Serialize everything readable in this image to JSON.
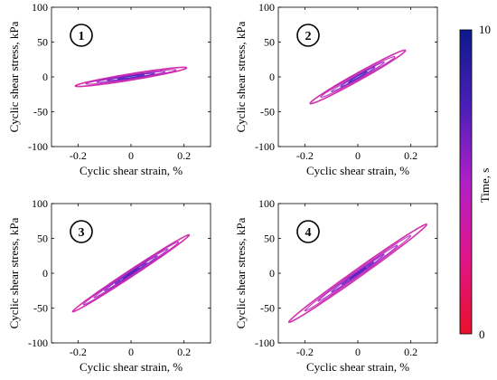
{
  "chart_data": {
    "type": "line",
    "panels": [
      {
        "id": "1",
        "xlabel": "Cyclic shear strain, %",
        "ylabel": "Cyclic shear stress, kPa",
        "xlim": [
          -0.3,
          0.3
        ],
        "ylim": [
          -100,
          100
        ],
        "xticks": [
          "-0.2",
          "0",
          "0.2"
        ],
        "yticks": [
          "100",
          "50",
          "0",
          "-50",
          "-100"
        ],
        "loops": [
          {
            "strain_amp": 0.21,
            "stress_amp": 13,
            "minor_ratio": 0.35
          },
          {
            "strain_amp": 0.17,
            "stress_amp": 10,
            "minor_ratio": 0.33
          },
          {
            "strain_amp": 0.13,
            "stress_amp": 7.5,
            "minor_ratio": 0.3
          },
          {
            "strain_amp": 0.09,
            "stress_amp": 5,
            "minor_ratio": 0.3
          },
          {
            "strain_amp": 0.05,
            "stress_amp": 3,
            "minor_ratio": 0.3
          }
        ]
      },
      {
        "id": "2",
        "xlabel": "Cyclic shear strain, %",
        "ylabel": "Cyclic shear stress, kPa",
        "xlim": [
          -0.3,
          0.3
        ],
        "ylim": [
          -100,
          100
        ],
        "xticks": [
          "-0.2",
          "0",
          "0.2"
        ],
        "yticks": [
          "100",
          "50",
          "0",
          "-50",
          "-100"
        ],
        "loops": [
          {
            "strain_amp": 0.18,
            "stress_amp": 38,
            "minor_ratio": 0.16
          },
          {
            "strain_amp": 0.14,
            "stress_amp": 29,
            "minor_ratio": 0.15
          },
          {
            "strain_amp": 0.1,
            "stress_amp": 21,
            "minor_ratio": 0.14
          },
          {
            "strain_amp": 0.065,
            "stress_amp": 14,
            "minor_ratio": 0.14
          },
          {
            "strain_amp": 0.035,
            "stress_amp": 8,
            "minor_ratio": 0.14
          }
        ]
      },
      {
        "id": "3",
        "xlabel": "Cyclic shear strain, %",
        "ylabel": "Cyclic shear stress, kPa",
        "xlim": [
          -0.3,
          0.3
        ],
        "ylim": [
          -100,
          100
        ],
        "xticks": [
          "-0.2",
          "0",
          "0.2"
        ],
        "yticks": [
          "100",
          "50",
          "0",
          "-50",
          "-100"
        ],
        "loops": [
          {
            "strain_amp": 0.22,
            "stress_amp": 55,
            "minor_ratio": 0.1
          },
          {
            "strain_amp": 0.18,
            "stress_amp": 45,
            "minor_ratio": 0.1
          },
          {
            "strain_amp": 0.14,
            "stress_amp": 35,
            "minor_ratio": 0.09
          },
          {
            "strain_amp": 0.1,
            "stress_amp": 25,
            "minor_ratio": 0.09
          },
          {
            "strain_amp": 0.06,
            "stress_amp": 15,
            "minor_ratio": 0.09
          },
          {
            "strain_amp": 0.03,
            "stress_amp": 8,
            "minor_ratio": 0.09
          }
        ]
      },
      {
        "id": "4",
        "xlabel": "Cyclic shear strain, %",
        "ylabel": "Cyclic shear stress, kPa",
        "xlim": [
          -0.3,
          0.3
        ],
        "ylim": [
          -100,
          100
        ],
        "xticks": [
          "-0.2",
          "0",
          "0.2"
        ],
        "yticks": [
          "100",
          "50",
          "0",
          "-50",
          "-100"
        ],
        "loops": [
          {
            "strain_amp": 0.26,
            "stress_amp": 70,
            "minor_ratio": 0.1
          },
          {
            "strain_amp": 0.2,
            "stress_amp": 54,
            "minor_ratio": 0.09
          },
          {
            "strain_amp": 0.15,
            "stress_amp": 40,
            "minor_ratio": 0.09
          },
          {
            "strain_amp": 0.1,
            "stress_amp": 27,
            "minor_ratio": 0.08
          },
          {
            "strain_amp": 0.06,
            "stress_amp": 16,
            "minor_ratio": 0.08
          },
          {
            "strain_amp": 0.03,
            "stress_amp": 8,
            "minor_ratio": 0.08
          }
        ]
      }
    ],
    "colorbar": {
      "label": "Time, s",
      "min_label": "0",
      "max_label": "10",
      "colors": [
        "#e8102a",
        "#e0158a",
        "#b020c8",
        "#4a1fb8",
        "#0d1a8c"
      ]
    }
  }
}
